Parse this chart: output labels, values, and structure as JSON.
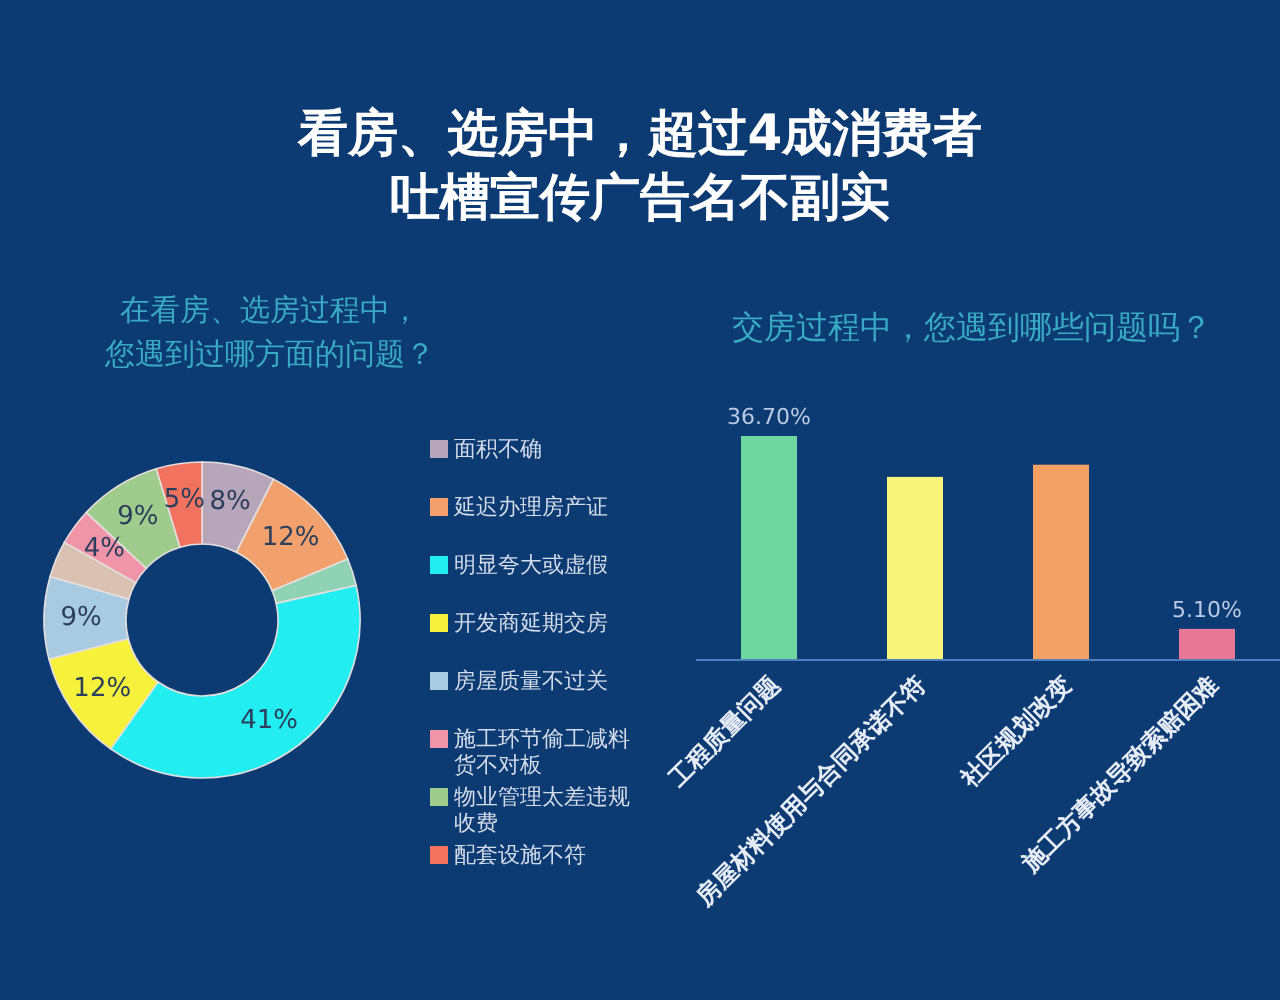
{
  "chart_data": [
    {
      "type": "other",
      "title": "看房、选房中，超过4成消费者吐槽宣传广告名不副实"
    },
    {
      "type": "donut",
      "title": "在看房、选房过程中，您遇到过哪方面的问题？",
      "categories": [
        "面积不确",
        "延迟办理房产证",
        null,
        "明显夸大或虚假",
        "开发商延期交房",
        "房屋质量不过关",
        null,
        "施工环节偷工减料货不对板",
        "物业管理太差违规收费",
        "配套设施不符"
      ],
      "values": [
        8,
        12,
        3,
        41,
        12,
        9,
        4,
        4,
        9,
        5
      ],
      "value_labels": [
        "8%",
        "12%",
        null,
        "41%",
        "12%",
        "9%",
        null,
        "4%",
        "9%",
        "5%"
      ],
      "colors": [
        "#b7a6b9",
        "#f2a16c",
        "#8fd3b4",
        "#22eef2",
        "#f6f23c",
        "#a9cbe2",
        "#d9c2b2",
        "#f094aa",
        "#9fcb8d",
        "#f0725f"
      ],
      "legend": "right"
    },
    {
      "type": "bar",
      "title": "交房过程中，您遇到哪些问题吗？",
      "categories": [
        "工程质量问题",
        "房屋材料使用与合同承诺不符",
        "社区规划改变",
        "施工方事故导致索赔困难"
      ],
      "values": [
        36.7,
        30,
        32,
        5.1
      ],
      "value_labels": [
        "36.70%",
        null,
        null,
        "5.10%"
      ],
      "colors": [
        "#6fd6a0",
        "#f8f47c",
        "#f3a064",
        "#e87898"
      ]
    }
  ]
}
